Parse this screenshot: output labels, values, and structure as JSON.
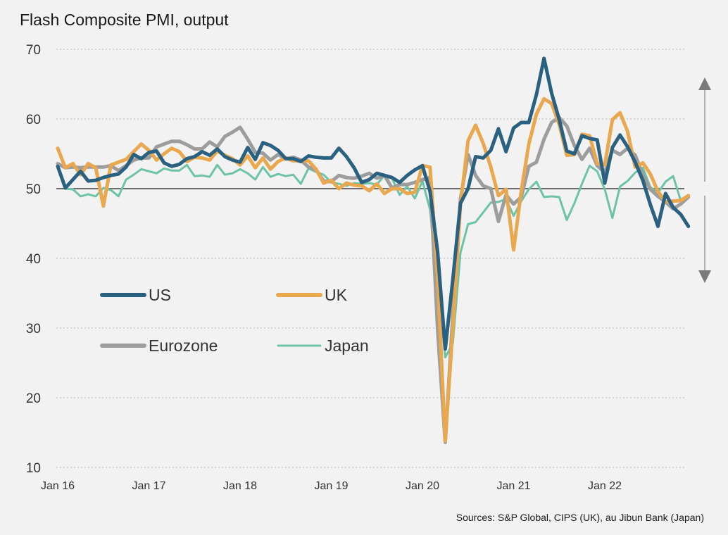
{
  "chart_data": {
    "type": "line",
    "title": "Flash Composite PMI, output",
    "source": "Sources: S&P Global, CIPS (UK), au Jibun Bank (Japan)",
    "xlabel": "",
    "ylabel": "",
    "ylim": [
      10,
      70
    ],
    "y_ticks": [
      70,
      60,
      50,
      40,
      30,
      20,
      10
    ],
    "x_range": [
      "2016-01",
      "2022-12"
    ],
    "x_ticks": [
      "Jan 16",
      "Jan 17",
      "Jan 18",
      "Jan 19",
      "Jan 20",
      "Jan 21",
      "Jan 22"
    ],
    "reference_line": 50,
    "grid": "horizontal dotted",
    "legend_position": "center-left, inside plot",
    "annotation": "double-headed vertical arrow at right edge, broken at the 50 line",
    "series": [
      {
        "name": "US",
        "color": "#2a6180",
        "values": [
          53.2,
          50.1,
          51.3,
          52.5,
          51.1,
          51.2,
          51.6,
          51.9,
          52.1,
          53.1,
          54.9,
          54.3,
          55.2,
          55.4,
          53.7,
          53.2,
          53.5,
          54.3,
          54.6,
          55.3,
          54.8,
          55.7,
          54.6,
          54.1,
          53.8,
          55.9,
          54.2,
          56.6,
          56.2,
          55.5,
          54.3,
          54.3,
          53.9,
          54.7,
          54.5,
          54.4,
          54.4,
          55.8,
          54.6,
          53.0,
          50.9,
          51.3,
          52.2,
          51.9,
          51.6,
          50.9,
          51.9,
          52.7,
          53.3,
          49.6,
          40.9,
          27.0,
          37.0,
          47.9,
          50.0,
          54.6,
          54.4,
          55.5,
          58.6,
          55.3,
          58.7,
          59.5,
          59.5,
          63.5,
          68.7,
          63.7,
          59.9,
          55.4,
          55.0,
          57.6,
          57.2,
          57.0,
          50.8,
          55.9,
          57.7,
          56.0,
          53.8,
          51.2,
          47.7,
          44.6,
          49.3,
          47.3,
          46.3,
          44.6
        ]
      },
      {
        "name": "UK",
        "color": "#e9a84e",
        "values": [
          55.8,
          53.0,
          53.6,
          52.0,
          53.6,
          53.0,
          47.5,
          53.4,
          53.8,
          54.2,
          55.3,
          56.4,
          55.5,
          54.1,
          55.0,
          55.8,
          55.3,
          53.9,
          54.5,
          54.4,
          54.1,
          55.4,
          54.8,
          54.3,
          53.4,
          54.7,
          53.0,
          54.4,
          52.8,
          53.9,
          54.4,
          54.0,
          54.0,
          54.0,
          52.8,
          50.8,
          51.2,
          50.0,
          50.8,
          50.5,
          50.4,
          49.7,
          50.7,
          49.3,
          50.0,
          50.0,
          49.3,
          49.5,
          53.3,
          53.1,
          37.1,
          13.8,
          30.0,
          47.7,
          56.9,
          59.1,
          56.5,
          53.1,
          49.0,
          49.9,
          41.2,
          49.6,
          56.4,
          60.7,
          62.9,
          62.2,
          59.2,
          54.8,
          54.9,
          57.8,
          57.6,
          53.6,
          53.4,
          59.9,
          60.9,
          58.2,
          53.1,
          53.7,
          52.1,
          49.6,
          48.1,
          48.2,
          48.3,
          49.0
        ]
      },
      {
        "name": "Eurozone",
        "color": "#9d9d9d",
        "values": [
          53.6,
          53.0,
          53.1,
          53.0,
          53.1,
          53.1,
          53.1,
          53.3,
          52.6,
          53.3,
          54.1,
          54.4,
          54.4,
          56.0,
          56.4,
          56.8,
          56.8,
          56.3,
          55.7,
          55.7,
          56.7,
          56.0,
          57.5,
          58.1,
          58.8,
          57.1,
          55.2,
          55.1,
          54.1,
          54.9,
          54.3,
          54.5,
          54.1,
          53.1,
          52.7,
          51.1,
          51.0,
          51.9,
          51.6,
          51.5,
          51.8,
          52.2,
          51.5,
          51.9,
          50.1,
          50.6,
          50.6,
          50.9,
          51.3,
          51.6,
          29.7,
          13.6,
          31.9,
          48.5,
          54.9,
          51.9,
          50.4,
          50.0,
          45.3,
          49.1,
          47.8,
          48.8,
          53.2,
          53.8,
          57.1,
          59.5,
          60.2,
          59.0,
          56.2,
          54.2,
          55.8,
          53.3,
          52.3,
          55.5,
          54.9,
          55.8,
          54.8,
          52.0,
          49.9,
          48.9,
          48.1,
          47.1,
          47.8,
          48.8
        ]
      },
      {
        "name": "Japan",
        "color": "#6dc3a5",
        "values": [
          53.3,
          50.0,
          49.9,
          48.9,
          49.2,
          48.9,
          50.1,
          49.8,
          48.9,
          51.3,
          52.0,
          52.8,
          52.5,
          52.2,
          52.9,
          52.6,
          52.6,
          53.4,
          51.8,
          51.9,
          51.7,
          53.4,
          52.0,
          52.2,
          52.8,
          52.2,
          51.3,
          53.1,
          51.7,
          52.1,
          51.8,
          52.0,
          50.7,
          52.9,
          52.4,
          52.0,
          50.9,
          50.7,
          50.4,
          50.8,
          50.7,
          50.8,
          50.6,
          51.9,
          51.5,
          49.1,
          50.3,
          48.6,
          51.1,
          47.0,
          36.2,
          25.8,
          27.8,
          40.8,
          44.9,
          45.2,
          46.6,
          48.0,
          48.1,
          48.5,
          46.1,
          48.2,
          49.9,
          51.0,
          48.8,
          48.9,
          48.8,
          45.5,
          47.9,
          50.7,
          53.3,
          52.5,
          49.9,
          45.8,
          50.3,
          51.1,
          52.3,
          53.0,
          50.2,
          49.4,
          51.0,
          51.8,
          48.3,
          49.0
        ]
      }
    ]
  }
}
